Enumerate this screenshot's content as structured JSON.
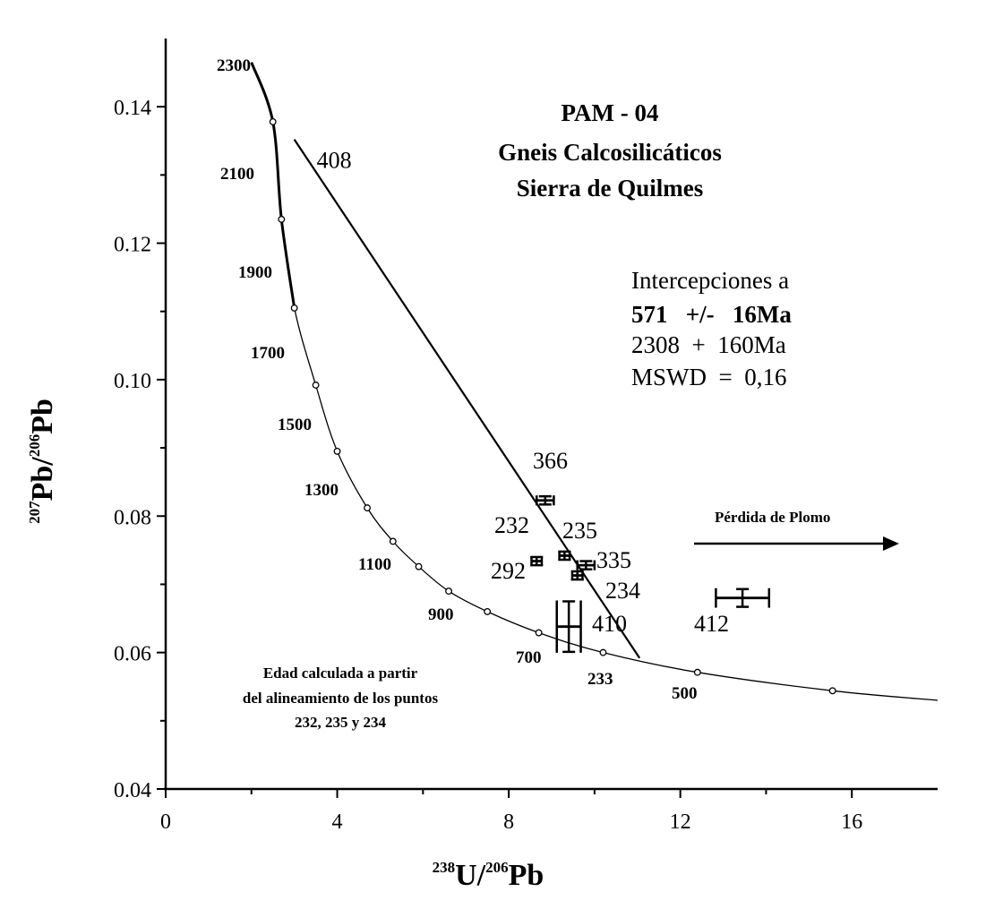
{
  "chart_data": {
    "type": "scatter",
    "title": "PAM - 04",
    "subtitle": [
      "Gneis Calcosilicáticos",
      "Sierra de Quilmes"
    ],
    "xlabel": {
      "sup1": "238",
      "main1": "U/",
      "sup2": "206",
      "main2": "Pb"
    },
    "ylabel": {
      "sup1": "207",
      "main1": "Pb/",
      "sup2": "206",
      "main2": "Pb"
    },
    "xlim": [
      0,
      18
    ],
    "ylim": [
      0.04,
      0.15
    ],
    "x_ticks": [
      0,
      4,
      8,
      12,
      16
    ],
    "x_tick_labels": [
      "0",
      "4",
      "8",
      "12",
      "16"
    ],
    "x_minor_ticks": [
      2,
      6,
      10,
      14
    ],
    "y_ticks": [
      0.04,
      0.06,
      0.08,
      0.1,
      0.12,
      0.14
    ],
    "y_tick_labels": [
      "0.04",
      "0.06",
      "0.08",
      "0.10",
      "0.12",
      "0.14"
    ],
    "y_minor_ticks": [
      0.05,
      0.07,
      0.09,
      0.11,
      0.13
    ],
    "concordia_ages": [
      {
        "age": "2300",
        "x": 2.0,
        "y": 0.1465,
        "marker": false
      },
      {
        "age": "2100",
        "x": 2.5,
        "y": 0.1378,
        "marker": true
      },
      {
        "age": "",
        "x": 2.7,
        "y": 0.1235,
        "marker": true
      },
      {
        "age": "1900",
        "x": 3.0,
        "y": 0.1105,
        "marker": true
      },
      {
        "age": "1700",
        "x": 3.5,
        "y": 0.0992,
        "marker": true
      },
      {
        "age": "1500",
        "x": 4.0,
        "y": 0.0895,
        "marker": true
      },
      {
        "age": "1300",
        "x": 4.7,
        "y": 0.0812,
        "marker": true
      },
      {
        "age": "",
        "x": 5.3,
        "y": 0.0763,
        "marker": true
      },
      {
        "age": "1100",
        "x": 5.9,
        "y": 0.0726,
        "marker": true
      },
      {
        "age": "900",
        "x": 6.6,
        "y": 0.069,
        "marker": true
      },
      {
        "age": "",
        "x": 7.5,
        "y": 0.066,
        "marker": true
      },
      {
        "age": "700",
        "x": 8.7,
        "y": 0.0629,
        "marker": true
      },
      {
        "age": "233",
        "x": 10.2,
        "y": 0.06,
        "marker": true
      },
      {
        "age": "500",
        "x": 12.4,
        "y": 0.0571,
        "marker": true
      },
      {
        "age": "",
        "x": 15.55,
        "y": 0.0544,
        "marker": true
      },
      {
        "age": "",
        "x": 18.0,
        "y": 0.053,
        "marker": false
      }
    ],
    "concordia_visible_ages": [
      "2300",
      "2100",
      "1900",
      "1700",
      "1500",
      "1300",
      "1100",
      "900",
      "700",
      "500"
    ],
    "discordia_line": {
      "label": "408",
      "x1": 3.0,
      "y1": 0.1352,
      "x2": 11.05,
      "y2": 0.0592
    },
    "points": [
      {
        "label": "366",
        "x": 8.85,
        "y": 0.0823,
        "x_err": 0.2,
        "y_err": 0.0006
      },
      {
        "label": "232",
        "x": 8.65,
        "y": 0.0734,
        "x_err": 0.12,
        "y_err": 0.0006
      },
      {
        "label": "292",
        "x": 8.65,
        "y": 0.0734,
        "x_err": 0.12,
        "y_err": 0.0006
      },
      {
        "label": "235",
        "x": 9.3,
        "y": 0.0742,
        "x_err": 0.12,
        "y_err": 0.0006
      },
      {
        "label": "335",
        "x": 9.8,
        "y": 0.0728,
        "x_err": 0.2,
        "y_err": 0.0006
      },
      {
        "label": "234",
        "x": 9.6,
        "y": 0.0713,
        "x_err": 0.12,
        "y_err": 0.0006
      },
      {
        "label": "410",
        "x": 9.4,
        "y": 0.0638,
        "x_err": 0.28,
        "y_err": 0.0037
      },
      {
        "label": "412",
        "x": 13.45,
        "y": 0.068,
        "x_err": 0.62,
        "y_err": 0.0013
      }
    ],
    "intercepts": {
      "heading": "Intercepciones a",
      "line1": "571   +/-   16Ma",
      "line2": "2308  +  160Ma",
      "line3": "MSWD  =  0,16"
    },
    "arrow_label": "Pérdida de Plomo",
    "note": [
      "Edad calculada a partir",
      "del alineamiento de los puntos",
      "232, 235 y 234"
    ]
  }
}
